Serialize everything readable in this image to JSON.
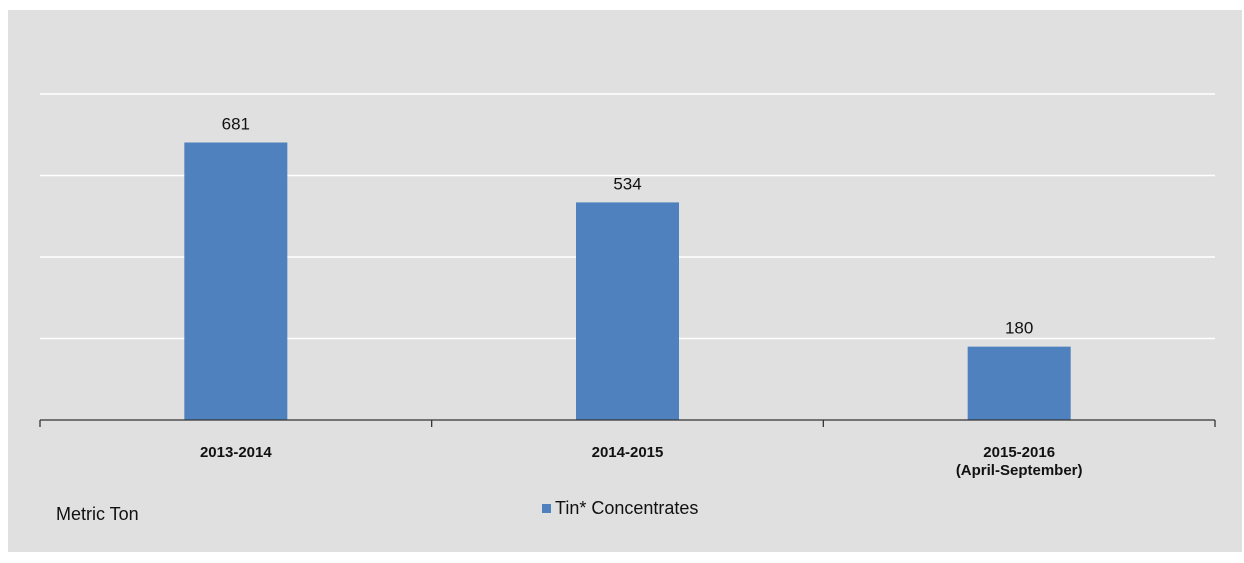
{
  "chart_data": {
    "type": "bar",
    "categories": [
      "2013-2014",
      "2014-2015",
      "2015-2016\n(April-September)"
    ],
    "series": [
      {
        "name": "Tin* Concentrates",
        "values": [
          681,
          534,
          180
        ],
        "color": "#4e81bd"
      }
    ],
    "data_labels": [
      "681",
      "534",
      "180"
    ],
    "ylabel": "Metric  Ton",
    "ylim": [
      0,
      800
    ],
    "grid": true,
    "legend_position": "bottom-center",
    "background_color": "#e0e0e0"
  },
  "unit_label": "Metric  Ton",
  "legend_label": "Tin* Concentrates"
}
